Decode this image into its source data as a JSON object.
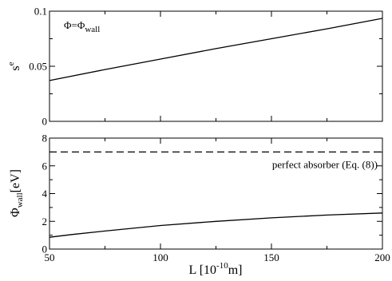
{
  "chart_data": [
    {
      "type": "line",
      "panel": "top",
      "title": "",
      "annotation": {
        "main": "Φ=Φ",
        "sub": "wall"
      },
      "xlabel": "",
      "ylabel": {
        "main": "s",
        "sup": "e"
      },
      "xlim": [
        50,
        200
      ],
      "ylim": [
        0,
        0.1
      ],
      "xticks": [
        50,
        100,
        150,
        200
      ],
      "yticks": [
        0,
        0.05,
        0.1
      ],
      "ytick_labels": [
        "0",
        "0.05",
        "0.1"
      ],
      "grid": false,
      "series": [
        {
          "x": [
            50,
            75,
            100,
            125,
            150,
            175,
            200
          ],
          "y": [
            0.037,
            0.047,
            0.0565,
            0.066,
            0.075,
            0.084,
            0.0935
          ]
        }
      ]
    },
    {
      "type": "line",
      "panel": "bottom",
      "title": "",
      "xlabel": {
        "pre": "L [10",
        "sup": "-10",
        "post": "m]"
      },
      "ylabel": {
        "main": "Φ",
        "sub": "wall",
        "post": "[eV]"
      },
      "xlim": [
        50,
        200
      ],
      "ylim": [
        0,
        8
      ],
      "xticks": [
        50,
        100,
        150,
        200
      ],
      "xtick_labels": [
        "50",
        "100",
        "150",
        "200"
      ],
      "yticks": [
        0,
        2,
        4,
        6,
        8
      ],
      "ytick_labels": [
        "0",
        "2",
        "4",
        "6",
        "8"
      ],
      "grid": false,
      "series": [
        {
          "x": [
            50,
            60,
            75,
            100,
            125,
            150,
            175,
            200
          ],
          "y": [
            0.85,
            1.05,
            1.3,
            1.7,
            2.0,
            2.25,
            2.45,
            2.6
          ]
        }
      ],
      "reference_line": {
        "y": 7.0,
        "style": "dashed",
        "label": "perfect absorber (Eq. (8))"
      }
    }
  ]
}
